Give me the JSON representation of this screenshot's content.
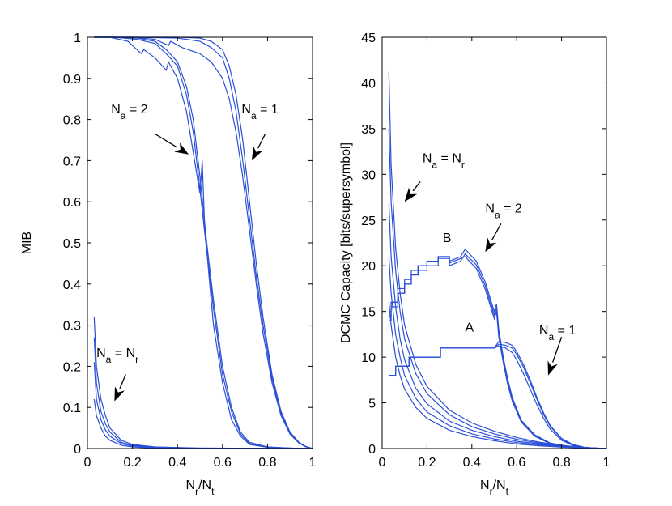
{
  "chart_data": [
    {
      "type": "line",
      "id": "left",
      "ylabel": "MIB",
      "xlabel": {
        "main": "N",
        "sub1": "r",
        "sep": "/N",
        "sub2": "t"
      },
      "xlim": [
        0,
        1
      ],
      "ylim": [
        0,
        1
      ],
      "xticks": [
        "0",
        "0.2",
        "0.4",
        "0.6",
        "0.8",
        "1"
      ],
      "yticks": [
        "0",
        "0.1",
        "0.2",
        "0.3",
        "0.4",
        "0.5",
        "0.6",
        "0.7",
        "0.8",
        "0.9",
        "1"
      ],
      "color": "#2a4fd6",
      "series": [
        {
          "name": "N_a = 1 (a)",
          "x": [
            0.03,
            0.2,
            0.4,
            0.5,
            0.55,
            0.6,
            0.63,
            0.66,
            0.69,
            0.72,
            0.75,
            0.78,
            0.82,
            0.86,
            0.9,
            0.94,
            0.97,
            1.0
          ],
          "y": [
            1,
            1,
            1,
            0.998,
            0.99,
            0.97,
            0.93,
            0.86,
            0.75,
            0.6,
            0.45,
            0.32,
            0.18,
            0.09,
            0.04,
            0.015,
            0.005,
            0
          ]
        },
        {
          "name": "N_a = 1 (b)",
          "x": [
            0.03,
            0.2,
            0.4,
            0.5,
            0.55,
            0.6,
            0.63,
            0.66,
            0.69,
            0.72,
            0.75,
            0.78,
            0.82,
            0.86,
            0.9,
            0.94,
            0.97,
            1.0
          ],
          "y": [
            1,
            1,
            0.998,
            0.99,
            0.975,
            0.95,
            0.9,
            0.82,
            0.7,
            0.56,
            0.42,
            0.3,
            0.17,
            0.085,
            0.038,
            0.014,
            0.005,
            0
          ]
        },
        {
          "name": "N_a = 1 (c)",
          "x": [
            0.03,
            0.2,
            0.3,
            0.36,
            0.37,
            0.42,
            0.5,
            0.55,
            0.6,
            0.63,
            0.66,
            0.69,
            0.72,
            0.75,
            0.78,
            0.82,
            0.86,
            0.9,
            0.94,
            0.97,
            1.0
          ],
          "y": [
            1,
            1,
            0.995,
            0.98,
            0.99,
            0.975,
            0.96,
            0.94,
            0.9,
            0.85,
            0.77,
            0.66,
            0.53,
            0.4,
            0.28,
            0.16,
            0.08,
            0.035,
            0.013,
            0.004,
            0
          ]
        },
        {
          "name": "N_a = 2 (a)",
          "x": [
            0.03,
            0.12,
            0.22,
            0.3,
            0.35,
            0.4,
            0.44,
            0.47,
            0.5,
            0.53,
            0.56,
            0.6,
            0.64,
            0.68,
            0.72,
            0.8,
            0.9,
            1.0
          ],
          "y": [
            1,
            1,
            0.998,
            0.99,
            0.97,
            0.94,
            0.88,
            0.8,
            0.66,
            0.5,
            0.36,
            0.2,
            0.1,
            0.04,
            0.015,
            0.004,
            0.001,
            0
          ]
        },
        {
          "name": "N_a = 2 (b)",
          "x": [
            0.03,
            0.12,
            0.22,
            0.3,
            0.35,
            0.4,
            0.44,
            0.47,
            0.5,
            0.53,
            0.56,
            0.6,
            0.64,
            0.68,
            0.72,
            0.8,
            0.9,
            1.0
          ],
          "y": [
            1,
            1,
            0.995,
            0.985,
            0.96,
            0.93,
            0.86,
            0.77,
            0.63,
            0.48,
            0.34,
            0.18,
            0.09,
            0.035,
            0.012,
            0.003,
            0.001,
            0
          ]
        },
        {
          "name": "N_a = 2 (c)",
          "x": [
            0.03,
            0.1,
            0.18,
            0.24,
            0.25,
            0.3,
            0.35,
            0.36,
            0.4,
            0.44,
            0.47,
            0.5,
            0.51,
            0.52,
            0.54,
            0.56,
            0.6,
            0.64,
            0.68,
            0.72,
            0.8,
            0.9,
            1.0
          ],
          "y": [
            1,
            1,
            0.99,
            0.96,
            0.97,
            0.95,
            0.92,
            0.94,
            0.9,
            0.82,
            0.72,
            0.62,
            0.7,
            0.55,
            0.42,
            0.3,
            0.16,
            0.07,
            0.03,
            0.01,
            0.003,
            0.001,
            0
          ]
        },
        {
          "name": "N_a = N_r (a)",
          "x": [
            0.03,
            0.04,
            0.06,
            0.08,
            0.1,
            0.15,
            0.2,
            0.3,
            0.5,
            1.0
          ],
          "y": [
            0.32,
            0.2,
            0.12,
            0.08,
            0.05,
            0.02,
            0.01,
            0.004,
            0.001,
            0
          ]
        },
        {
          "name": "N_a = N_r (b)",
          "x": [
            0.03,
            0.04,
            0.06,
            0.08,
            0.1,
            0.15,
            0.2,
            0.3,
            0.5,
            1.0
          ],
          "y": [
            0.27,
            0.16,
            0.09,
            0.06,
            0.04,
            0.015,
            0.008,
            0.003,
            0.001,
            0
          ]
        },
        {
          "name": "N_a = N_r (c)",
          "x": [
            0.03,
            0.04,
            0.06,
            0.08,
            0.1,
            0.15,
            0.2,
            0.3,
            0.5,
            1.0
          ],
          "y": [
            0.21,
            0.12,
            0.07,
            0.045,
            0.03,
            0.012,
            0.006,
            0.002,
            0.0005,
            0
          ]
        },
        {
          "name": "N_a = N_r (d)",
          "x": [
            0.03,
            0.04,
            0.06,
            0.08,
            0.1,
            0.15,
            0.2,
            0.3,
            0.5,
            1.0
          ],
          "y": [
            0.12,
            0.08,
            0.05,
            0.03,
            0.02,
            0.008,
            0.004,
            0.001,
            0.0002,
            0
          ]
        }
      ],
      "annotations": [
        {
          "name": "na2",
          "main": "N",
          "sub": "a",
          "rest": " = 2",
          "x": 0.105,
          "y": 0.815,
          "arrow": [
            [
              0.3,
              0.765
            ],
            [
              0.45,
              0.715
            ]
          ]
        },
        {
          "name": "na1",
          "main": "N",
          "sub": "a",
          "rest": " = 1",
          "x": 0.685,
          "y": 0.815,
          "arrow": [
            [
              0.79,
              0.765
            ],
            [
              0.73,
              0.7
            ]
          ]
        },
        {
          "name": "nanr",
          "main": "N",
          "sub": "a",
          "rest": " = N",
          "sub2": "r",
          "x": 0.04,
          "y": 0.222,
          "arrow": [
            [
              0.17,
              0.18
            ],
            [
              0.12,
              0.115
            ]
          ]
        }
      ]
    },
    {
      "type": "line",
      "id": "right",
      "ylabel": "DCMC Capacity [bits/supersymbol]",
      "xlabel": {
        "main": "N",
        "sub1": "r",
        "sep": "/N",
        "sub2": "t"
      },
      "xlim": [
        0,
        1
      ],
      "ylim": [
        0,
        45
      ],
      "xticks": [
        "0",
        "0.2",
        "0.4",
        "0.6",
        "0.8",
        "1"
      ],
      "yticks": [
        "0",
        "5",
        "10",
        "15",
        "20",
        "25",
        "30",
        "35",
        "40",
        "45"
      ],
      "color": "#2a4fd6",
      "series": [
        {
          "name": "A (a)",
          "x": [
            0.03,
            0.06,
            0.06,
            0.12,
            0.12,
            0.26,
            0.26,
            0.5,
            0.52,
            0.55,
            0.58,
            0.6,
            0.63,
            0.66,
            0.69,
            0.72,
            0.75,
            0.8,
            0.85,
            0.9,
            0.95,
            1.0
          ],
          "y": [
            8,
            8,
            9,
            9,
            10,
            10,
            11,
            11,
            11.7,
            11.6,
            11.3,
            10.6,
            9.2,
            7.5,
            5.6,
            3.9,
            2.5,
            1.1,
            0.45,
            0.15,
            0.04,
            0
          ]
        },
        {
          "name": "A (b)",
          "x": [
            0.03,
            0.06,
            0.06,
            0.12,
            0.12,
            0.26,
            0.26,
            0.5,
            0.52,
            0.55,
            0.58,
            0.6,
            0.63,
            0.66,
            0.69,
            0.72,
            0.75,
            0.8,
            0.85,
            0.9,
            0.95,
            1.0
          ],
          "y": [
            8,
            8,
            9,
            9,
            10,
            10,
            11,
            11,
            11.4,
            11.3,
            11.0,
            10.3,
            8.9,
            7.2,
            5.4,
            3.7,
            2.4,
            1.05,
            0.42,
            0.14,
            0.04,
            0
          ]
        },
        {
          "name": "A (c)",
          "x": [
            0.03,
            0.06,
            0.06,
            0.12,
            0.12,
            0.26,
            0.26,
            0.5,
            0.52,
            0.55,
            0.58,
            0.6,
            0.63,
            0.66,
            0.69,
            0.72,
            0.75,
            0.8,
            0.85,
            0.9,
            0.95,
            1.0
          ],
          "y": [
            8,
            8,
            9,
            9,
            10,
            10,
            11,
            11,
            11.2,
            11.0,
            10.5,
            9.7,
            8.2,
            6.5,
            4.8,
            3.3,
            2.1,
            0.9,
            0.35,
            0.12,
            0.03,
            0
          ]
        },
        {
          "name": "B (a)",
          "x": [
            0.03,
            0.04,
            0.04,
            0.07,
            0.07,
            0.1,
            0.1,
            0.13,
            0.13,
            0.16,
            0.16,
            0.2,
            0.2,
            0.25,
            0.25,
            0.3,
            0.3,
            0.35,
            0.37,
            0.42,
            0.46,
            0.5,
            0.51,
            0.52,
            0.54,
            0.56,
            0.58,
            0.62,
            0.68,
            0.75,
            0.85,
            1.0
          ],
          "y": [
            14,
            14,
            16,
            16,
            17,
            17,
            18,
            18,
            19,
            19,
            20,
            20,
            20.5,
            20.5,
            21,
            21,
            20.5,
            21,
            21.8,
            20.5,
            18.2,
            15,
            15.8,
            13,
            10,
            7.6,
            5.6,
            3.1,
            1.5,
            0.6,
            0.15,
            0
          ]
        },
        {
          "name": "B (b)",
          "x": [
            0.03,
            0.04,
            0.04,
            0.07,
            0.07,
            0.1,
            0.1,
            0.13,
            0.13,
            0.16,
            0.16,
            0.2,
            0.2,
            0.25,
            0.25,
            0.3,
            0.3,
            0.35,
            0.37,
            0.42,
            0.46,
            0.5,
            0.51,
            0.52,
            0.54,
            0.56,
            0.58,
            0.62,
            0.68,
            0.75,
            0.85,
            1.0
          ],
          "y": [
            14.5,
            14.5,
            15.5,
            15.5,
            17,
            17,
            18,
            18,
            19,
            19,
            19.5,
            19.5,
            20,
            20,
            21,
            21,
            20,
            20.5,
            21.3,
            20.1,
            17.8,
            14.6,
            15.4,
            12.6,
            9.7,
            7.3,
            5.4,
            3.0,
            1.4,
            0.55,
            0.14,
            0
          ]
        },
        {
          "name": "B (c)",
          "x": [
            0.03,
            0.04,
            0.04,
            0.07,
            0.07,
            0.1,
            0.1,
            0.13,
            0.13,
            0.16,
            0.16,
            0.2,
            0.2,
            0.25,
            0.25,
            0.3,
            0.3,
            0.35,
            0.37,
            0.42,
            0.46,
            0.5,
            0.51,
            0.52,
            0.54,
            0.56,
            0.58,
            0.62,
            0.68,
            0.75,
            0.85,
            1.0
          ],
          "y": [
            15,
            15,
            16,
            16,
            17.5,
            17.5,
            18.5,
            18.5,
            19.5,
            19.5,
            20,
            20,
            20.5,
            20.5,
            20.8,
            20.8,
            20.3,
            20.8,
            21.0,
            19.7,
            17.4,
            14.2,
            15.0,
            12.2,
            9.4,
            7.0,
            5.2,
            2.9,
            1.35,
            0.52,
            0.13,
            0
          ]
        },
        {
          "name": "N_a = N_r (a)",
          "x": [
            0.03,
            0.04,
            0.06,
            0.08,
            0.1,
            0.15,
            0.2,
            0.3,
            0.4,
            0.5,
            0.6,
            0.7,
            0.8,
            0.9,
            1.0
          ],
          "y": [
            41.2,
            31,
            22,
            17,
            13.5,
            9.2,
            6.8,
            4.2,
            2.8,
            1.9,
            1.2,
            0.7,
            0.35,
            0.12,
            0
          ]
        },
        {
          "name": "N_a = N_r (b)",
          "x": [
            0.03,
            0.04,
            0.06,
            0.08,
            0.1,
            0.15,
            0.2,
            0.3,
            0.4,
            0.5,
            0.6,
            0.7,
            0.8,
            0.9,
            1.0
          ],
          "y": [
            35,
            27,
            19.5,
            15,
            12,
            8.2,
            6,
            3.7,
            2.4,
            1.6,
            1.0,
            0.6,
            0.3,
            0.1,
            0
          ]
        },
        {
          "name": "N_a = N_r (c)",
          "x": [
            0.03,
            0.04,
            0.06,
            0.08,
            0.1,
            0.15,
            0.2,
            0.3,
            0.4,
            0.5,
            0.6,
            0.7,
            0.8,
            0.9,
            1.0
          ],
          "y": [
            26.8,
            21,
            15.5,
            12,
            9.7,
            6.6,
            4.9,
            3.0,
            2.0,
            1.3,
            0.8,
            0.5,
            0.25,
            0.08,
            0
          ]
        },
        {
          "name": "N_a = N_r (d)",
          "x": [
            0.03,
            0.04,
            0.06,
            0.08,
            0.1,
            0.15,
            0.2,
            0.3,
            0.4,
            0.5,
            0.6,
            0.7,
            0.8,
            0.9,
            1.0
          ],
          "y": [
            21,
            17,
            12.5,
            10,
            8,
            5.5,
            4.0,
            2.5,
            1.6,
            1.05,
            0.65,
            0.4,
            0.2,
            0.07,
            0
          ]
        },
        {
          "name": "N_a = N_r (e)",
          "x": [
            0.03,
            0.04,
            0.06,
            0.08,
            0.1,
            0.15,
            0.2,
            0.3,
            0.4,
            0.5,
            0.6,
            0.7,
            0.8,
            0.9,
            1.0
          ],
          "y": [
            16,
            13.5,
            10,
            8,
            6.5,
            4.5,
            3.3,
            2.0,
            1.3,
            0.85,
            0.5,
            0.3,
            0.15,
            0.05,
            0
          ]
        }
      ],
      "annotations": [
        {
          "name": "nanr",
          "main": "N",
          "sub": "a",
          "rest": " = N",
          "sub2": "r",
          "x": 0.18,
          "y": 31.3,
          "arrow": [
            [
              0.17,
              29.2
            ],
            [
              0.1,
              27.0
            ]
          ]
        },
        {
          "name": "na2",
          "main": "N",
          "sub": "a",
          "rest": " = 2",
          "x": 0.46,
          "y": 25.8,
          "arrow": [
            [
              0.53,
              24.6
            ],
            [
              0.46,
              21.5
            ]
          ]
        },
        {
          "name": "na1",
          "main": "N",
          "sub": "a",
          "rest": " = 1",
          "x": 0.7,
          "y": 12.5,
          "arrow": [
            [
              0.8,
              12.2
            ],
            [
              0.74,
              8.0
            ]
          ]
        },
        {
          "name": "label-b",
          "main": "B",
          "x": 0.27,
          "y": 22.6
        },
        {
          "name": "label-a",
          "main": "A",
          "x": 0.37,
          "y": 12.8
        }
      ]
    }
  ]
}
